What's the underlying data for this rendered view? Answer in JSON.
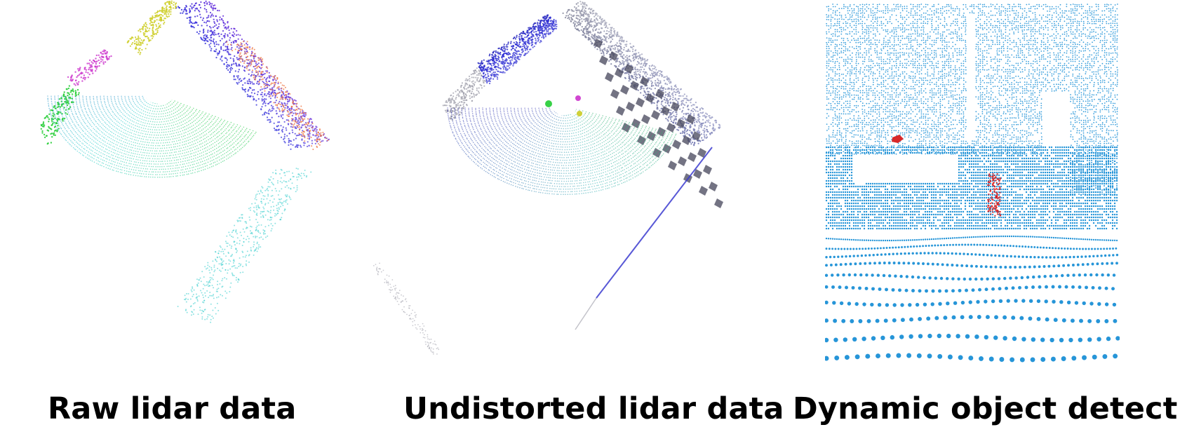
{
  "captions": {
    "raw": "Raw lidar data",
    "undistorted": "Undistorted lidar data",
    "dynamic": "Dynamic object detection"
  },
  "colors": {
    "background": "#ffffff",
    "caption_text": "#000000",
    "dynamic_points": "#1a8fd6",
    "dynamic_object": "#d81e1e",
    "building_gray": "#9a9aa6",
    "building_blue": "#3b3bd0",
    "ring_green": "#22cc33",
    "ring_cyan": "#33cccc",
    "ring_magenta": "#cc33cc",
    "ring_yellow": "#cccc22",
    "ring_orange": "#ee7744"
  },
  "icons": {
    "raw": "lidar-point-cloud-raw",
    "undistorted": "lidar-point-cloud-undistorted",
    "dynamic": "lidar-point-cloud-dynamic"
  }
}
